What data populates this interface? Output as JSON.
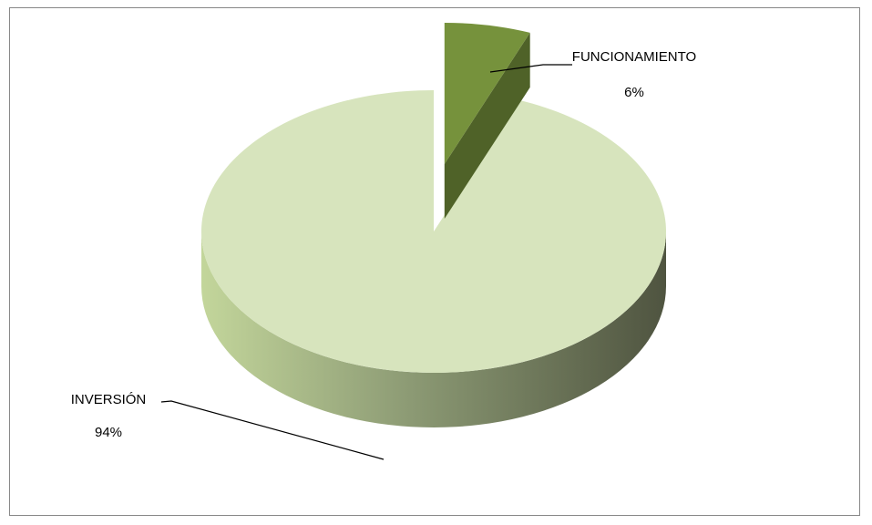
{
  "chart_data": {
    "type": "pie",
    "style": "3d-exploded",
    "categories": [
      "FUNCIONAMIENTO",
      "INVERSIÓN"
    ],
    "values": [
      6,
      94
    ],
    "labels": [
      {
        "name": "FUNCIONAMIENTO",
        "percent": "6%"
      },
      {
        "name": "INVERSIÓN",
        "percent": "94%"
      }
    ],
    "legend": "none",
    "colors": {
      "funcionamiento_top": "#76923C",
      "funcionamiento_side": "#4F6228",
      "inversion_top": "#D7E4BD",
      "inversion_side_light": "#C3D69B",
      "inversion_side_dark": "#4F5440"
    }
  }
}
